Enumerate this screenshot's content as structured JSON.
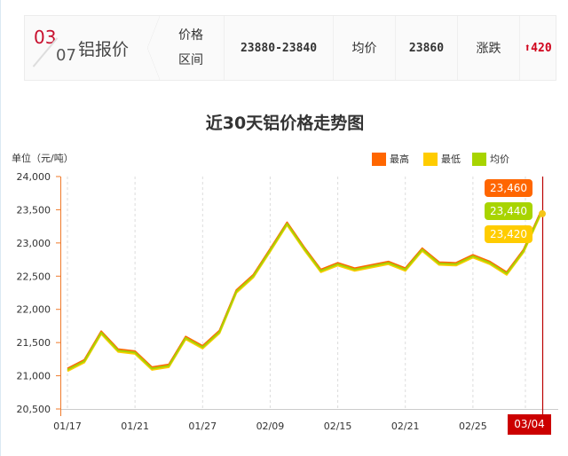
{
  "header": {
    "month": "03",
    "day": "07",
    "title": "铝报价",
    "range_label_1": "价格",
    "range_label_2": "区间",
    "range_value": "23880-23840",
    "avg_label": "均价",
    "avg_value": "23860",
    "change_label": "涨跌",
    "change_value": "420",
    "change_icon": "arrow-up-icon",
    "change_color": "#d0021b"
  },
  "chart_data": {
    "type": "line",
    "title": "近30天铝价格走势图",
    "ylabel": "单位（元/吨）",
    "ylim": [
      20500,
      24000
    ],
    "y_ticks": [
      "24,000",
      "23,500",
      "23,000",
      "22,500",
      "22,000",
      "21,500",
      "21,000",
      "20,500"
    ],
    "y_tick_values": [
      24000,
      23500,
      23000,
      22500,
      22000,
      21500,
      21000,
      20500
    ],
    "x_tick_labels": [
      {
        "index": 0,
        "label": "01/17"
      },
      {
        "index": 4,
        "label": "01/21"
      },
      {
        "index": 8,
        "label": "01/27"
      },
      {
        "index": 12,
        "label": "02/09"
      },
      {
        "index": 16,
        "label": "02/15"
      },
      {
        "index": 20,
        "label": "02/21"
      },
      {
        "index": 24,
        "label": "02/25"
      }
    ],
    "grid": "vertical-dashed",
    "legend_position": "top-right",
    "series": [
      {
        "name": "最高",
        "color": "#ff6600",
        "values": [
          21110,
          21240,
          21670,
          21400,
          21370,
          21130,
          21170,
          21590,
          21450,
          21680,
          22290,
          22520,
          22910,
          23310,
          22940,
          22600,
          22700,
          22620,
          22670,
          22720,
          22620,
          22920,
          22710,
          22700,
          22820,
          22720,
          22560,
          22900,
          23460
        ]
      },
      {
        "name": "最低",
        "color": "#ffcc00",
        "values": [
          21070,
          21200,
          21630,
          21360,
          21330,
          21090,
          21130,
          21550,
          21410,
          21640,
          22250,
          22480,
          22870,
          23270,
          22900,
          22560,
          22660,
          22580,
          22630,
          22680,
          22580,
          22880,
          22670,
          22660,
          22780,
          22680,
          22520,
          22860,
          23420
        ]
      },
      {
        "name": "均价",
        "color": "#a8d400",
        "values": [
          21090,
          21220,
          21650,
          21380,
          21350,
          21110,
          21150,
          21570,
          21430,
          21660,
          22270,
          22500,
          22890,
          23290,
          22920,
          22580,
          22680,
          22600,
          22650,
          22700,
          22600,
          22900,
          22690,
          22680,
          22800,
          22700,
          22540,
          22880,
          23440
        ]
      }
    ],
    "hover": {
      "date": "03/04",
      "high": "23,460",
      "avg": "23,440",
      "low": "23,420"
    }
  }
}
